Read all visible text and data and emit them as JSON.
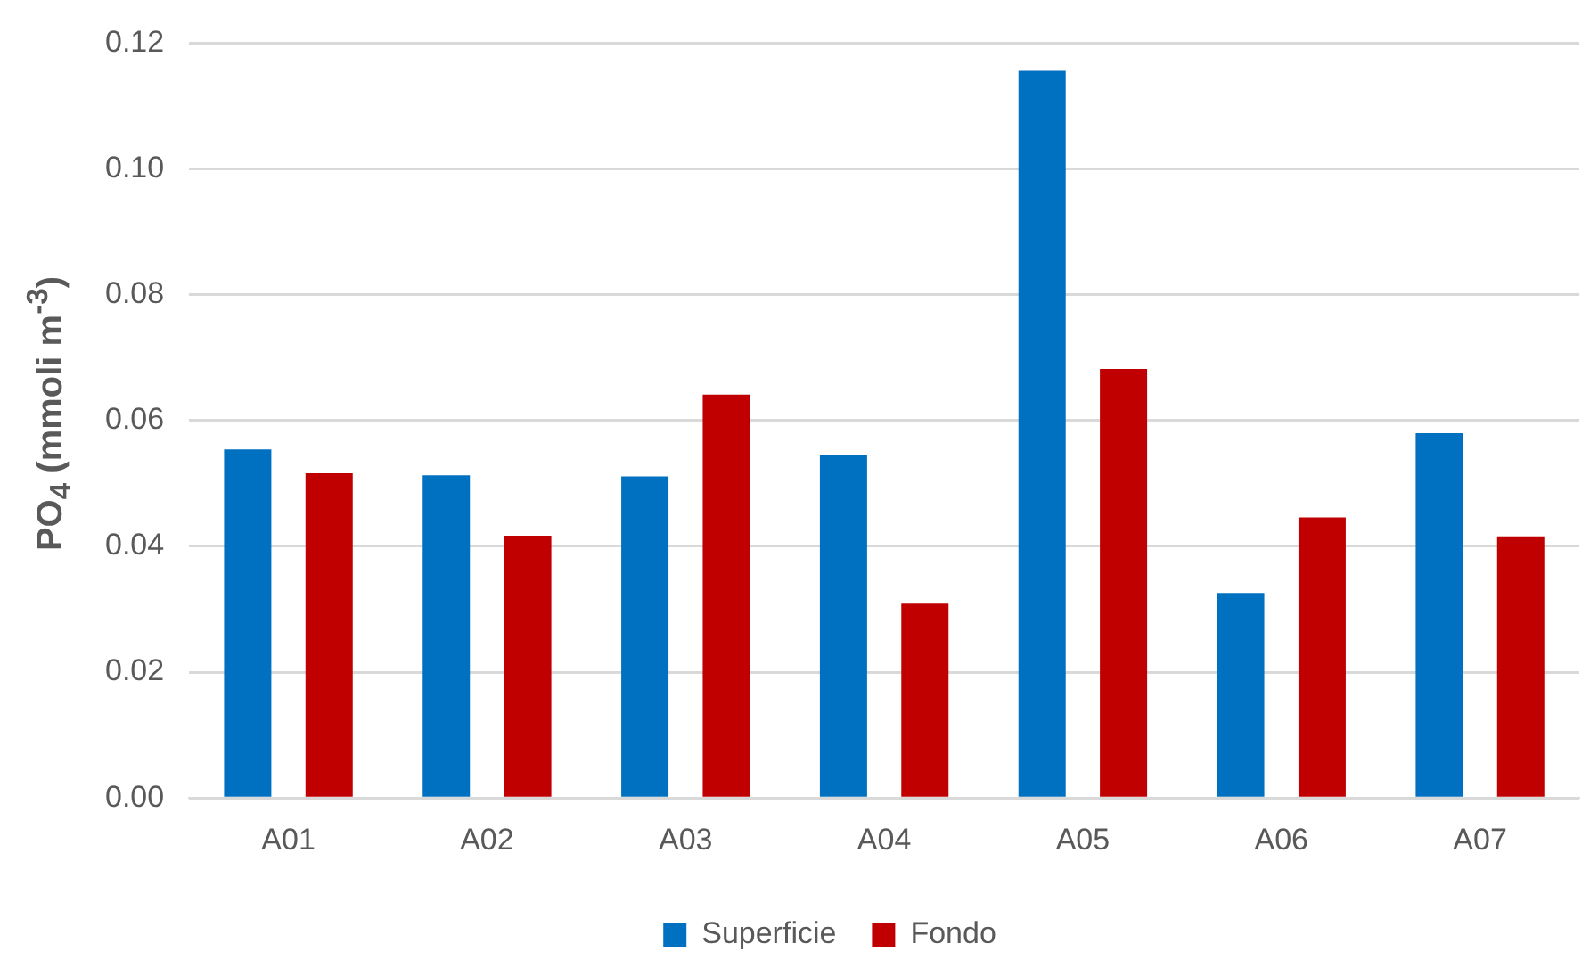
{
  "chart_data": {
    "type": "bar",
    "ylabel": "PO$_{4}$ (mmoli m$^{-3}$)",
    "categories": [
      "A01",
      "A02",
      "A03",
      "A04",
      "A05",
      "A06",
      "A07"
    ],
    "series": [
      {
        "name": "Superficie",
        "color": "#0070c0",
        "values": [
          0.0554,
          0.0513,
          0.0511,
          0.0546,
          0.1156,
          0.0326,
          0.058
        ]
      },
      {
        "name": "Fondo",
        "color": "#c00000",
        "values": [
          0.0516,
          0.0417,
          0.0641,
          0.0309,
          0.0682,
          0.0446,
          0.0416
        ]
      }
    ],
    "ylim": [
      0,
      0.12
    ],
    "yticks": [
      {
        "value": 0,
        "label": "0.00"
      },
      0.02,
      0.04,
      0.06,
      0.08,
      {
        "value": 0.1,
        "label": "0.10"
      },
      0.12
    ],
    "grid": "y",
    "legend": "bottom"
  }
}
